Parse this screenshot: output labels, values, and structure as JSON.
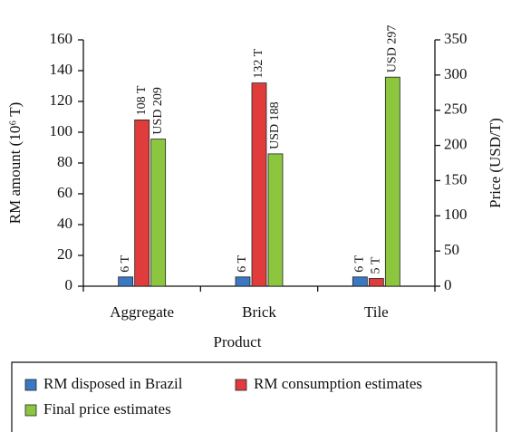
{
  "chart_data": {
    "type": "bar",
    "categories": [
      "Aggregate",
      "Brick",
      "Tile"
    ],
    "x_label": "Product",
    "y_label": "RM amount (10⁶ T)",
    "y2_label": "Price (USD/T)",
    "ylim": [
      0,
      160
    ],
    "yticks": [
      0,
      20,
      40,
      60,
      80,
      100,
      120,
      140,
      160
    ],
    "y2lim": [
      0,
      350
    ],
    "y2ticks": [
      0,
      50,
      100,
      150,
      200,
      250,
      300,
      350
    ],
    "legend": "bottom",
    "series": [
      {
        "name": "RM disposed in Brazil",
        "color": "#3a78c4",
        "values": [
          6,
          6,
          6
        ],
        "value_labels": [
          "6 T",
          "6 T",
          "6 T"
        ]
      },
      {
        "name": "RM consumption estimates",
        "color": "#e03c3c",
        "values": [
          108,
          132,
          5
        ],
        "value_labels": [
          "108 T",
          "132 T",
          "5 T"
        ]
      },
      {
        "name": "Final price estimates",
        "color": "#8cc63f",
        "axis": "y2",
        "values": [
          209,
          188,
          297
        ],
        "value_labels": [
          "USD 209",
          "USD 188",
          "USD 297"
        ]
      }
    ]
  }
}
